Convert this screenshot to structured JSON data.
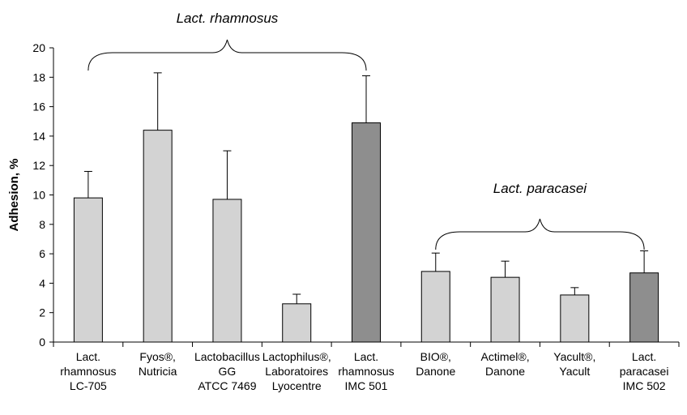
{
  "chart_data": {
    "type": "bar",
    "title": "",
    "xlabel": "",
    "ylabel": "Adhesion, %",
    "ylim": [
      0,
      20
    ],
    "yticks": [
      0,
      2,
      4,
      6,
      8,
      10,
      12,
      14,
      16,
      18,
      20
    ],
    "grid": false,
    "categories": [
      [
        "Lact.",
        "rhamnosus",
        "LC-705"
      ],
      [
        "Fyos®,",
        "Nutricia"
      ],
      [
        "Lactobacillus",
        "GG",
        "ATCC 7469"
      ],
      [
        "Lactophilus®,",
        "Laboratoires",
        "Lyocentre"
      ],
      [
        "Lact.",
        "rhamnosus",
        "IMC 501"
      ],
      [
        "BIO®,",
        "Danone"
      ],
      [
        "Actimel®,",
        "Danone"
      ],
      [
        "Yacult®,",
        "Yacult"
      ],
      [
        "Lact.",
        "paracasei",
        "IMC 502"
      ]
    ],
    "values": [
      9.8,
      14.4,
      9.7,
      2.6,
      14.9,
      4.8,
      4.4,
      3.2,
      4.7
    ],
    "error_upper": [
      11.6,
      18.3,
      13.0,
      3.25,
      18.1,
      6.05,
      5.5,
      3.7,
      6.2
    ],
    "highlight": [
      false,
      false,
      false,
      false,
      true,
      false,
      false,
      false,
      true
    ],
    "colors": {
      "bar": "#d3d3d3",
      "highlight_bar": "#8e8e8e",
      "stroke": "#000000"
    },
    "groups": [
      {
        "label": "Lact. rhamnosus",
        "from": 0,
        "to": 4
      },
      {
        "label": "Lact. paracasei",
        "from": 5,
        "to": 8
      }
    ]
  }
}
